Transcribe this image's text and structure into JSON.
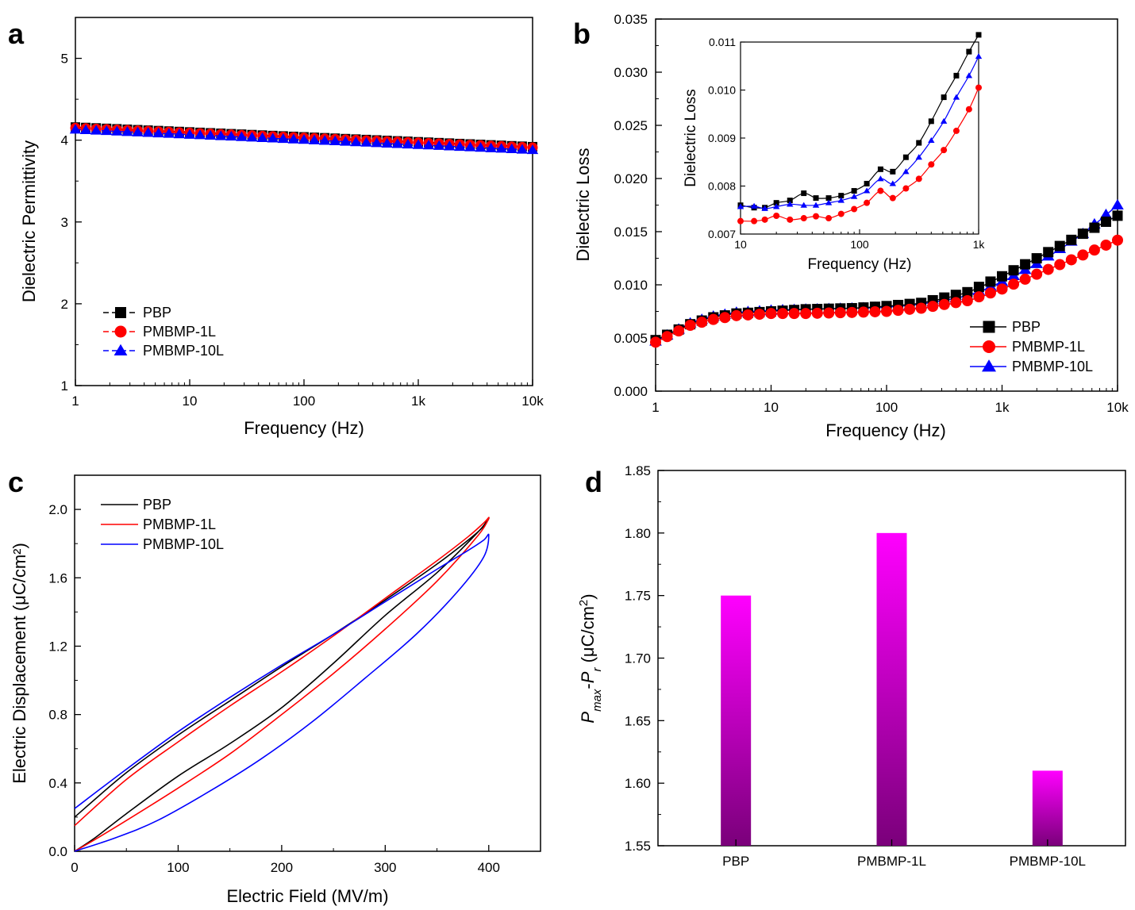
{
  "chart_data": [
    {
      "panel": "a",
      "type": "line",
      "xlabel": "Frequency (Hz)",
      "ylabel": "Dielectric Permittivity",
      "xscale": "log",
      "xlim": [
        1,
        10000
      ],
      "ylim": [
        1,
        5.5
      ],
      "x_ticks": [
        "1",
        "10",
        "100",
        "1k",
        "10k"
      ],
      "y_ticks": [
        "1",
        "2",
        "3",
        "4",
        "5"
      ],
      "legend_position": "bottom-left",
      "series": [
        {
          "name": "PBP",
          "marker": "square",
          "color": "#000000",
          "dash": "dashed",
          "x_range": [
            1,
            10000
          ],
          "y_start": 4.16,
          "y_end": 3.92
        },
        {
          "name": "PMBMP-1L",
          "marker": "circle",
          "color": "#ff0000",
          "dash": "dashed",
          "x_range": [
            1,
            10000
          ],
          "y_start": 4.15,
          "y_end": 3.91
        },
        {
          "name": "PMBMP-10L",
          "marker": "triangle",
          "color": "#0000ff",
          "dash": "dashed",
          "x_range": [
            1,
            10000
          ],
          "y_start": 4.13,
          "y_end": 3.88
        }
      ]
    },
    {
      "panel": "b",
      "type": "line",
      "xlabel": "Frequency (Hz)",
      "ylabel": "Dielectric Loss",
      "xscale": "log",
      "xlim": [
        1,
        10000
      ],
      "ylim": [
        0,
        0.035
      ],
      "x_ticks": [
        "1",
        "10",
        "100",
        "1k",
        "10k"
      ],
      "y_ticks": [
        "0.000",
        "0.005",
        "0.010",
        "0.015",
        "0.020",
        "0.025",
        "0.030",
        "0.035"
      ],
      "legend_position": "bottom-right",
      "series": [
        {
          "name": "PBP",
          "marker": "square",
          "color": "#000000",
          "x": [
            1,
            2,
            3,
            5,
            10,
            20,
            50,
            100,
            200,
            500,
            1000,
            2000,
            5000,
            10000
          ],
          "y": [
            0.0048,
            0.0063,
            0.0069,
            0.0073,
            0.0075,
            0.0077,
            0.0078,
            0.008,
            0.0083,
            0.0093,
            0.0108,
            0.0125,
            0.0148,
            0.0165
          ]
        },
        {
          "name": "PMBMP-1L",
          "marker": "circle",
          "color": "#ff0000",
          "x": [
            1,
            2,
            3,
            5,
            10,
            20,
            50,
            100,
            200,
            500,
            1000,
            2000,
            5000,
            10000
          ],
          "y": [
            0.0046,
            0.0062,
            0.0067,
            0.0071,
            0.0073,
            0.0073,
            0.0074,
            0.0075,
            0.0078,
            0.0085,
            0.0096,
            0.011,
            0.0128,
            0.0142
          ]
        },
        {
          "name": "PMBMP-10L",
          "marker": "triangle",
          "color": "#0000ff",
          "x": [
            1,
            2,
            3,
            5,
            10,
            20,
            50,
            100,
            200,
            500,
            1000,
            2000,
            5000,
            10000
          ],
          "y": [
            0.0047,
            0.0064,
            0.007,
            0.0074,
            0.0076,
            0.0077,
            0.0078,
            0.0079,
            0.0082,
            0.009,
            0.0103,
            0.012,
            0.0148,
            0.0175
          ]
        }
      ],
      "inset": {
        "xlabel": "Frequency (Hz)",
        "ylabel": "Dielectric Loss",
        "xscale": "log",
        "xlim": [
          10,
          1000
        ],
        "ylim": [
          0.007,
          0.011
        ],
        "x_ticks": [
          "10",
          "100",
          "1k"
        ],
        "y_ticks": [
          "0.007",
          "0.008",
          "0.009",
          "0.010",
          "0.011"
        ],
        "series": [
          {
            "name": "PBP",
            "marker": "square",
            "color": "#000000",
            "x": [
              10,
              13,
              16,
              20,
              26,
              34,
              43,
              55,
              70,
              90,
              115,
              150,
              190,
              245,
              315,
              400,
              510,
              650,
              830,
              1000
            ],
            "y": [
              0.0076,
              0.00755,
              0.00755,
              0.00765,
              0.0077,
              0.00785,
              0.00775,
              0.00775,
              0.0078,
              0.0079,
              0.00805,
              0.00835,
              0.0083,
              0.0086,
              0.0089,
              0.00935,
              0.00985,
              0.0103,
              0.0108,
              0.01115
            ]
          },
          {
            "name": "PMBMP-1L",
            "marker": "circle",
            "color": "#ff0000",
            "x": [
              10,
              13,
              16,
              20,
              26,
              34,
              43,
              55,
              70,
              90,
              115,
              150,
              190,
              245,
              315,
              400,
              510,
              650,
              830,
              1000
            ],
            "y": [
              0.00727,
              0.00727,
              0.0073,
              0.00738,
              0.0073,
              0.00733,
              0.00737,
              0.00733,
              0.00742,
              0.00752,
              0.00765,
              0.0079,
              0.00775,
              0.00795,
              0.00815,
              0.00845,
              0.00875,
              0.00915,
              0.0096,
              0.01005
            ]
          },
          {
            "name": "PMBMP-10L",
            "marker": "triangle",
            "color": "#0000ff",
            "x": [
              10,
              13,
              16,
              20,
              26,
              34,
              43,
              55,
              70,
              90,
              115,
              150,
              190,
              245,
              315,
              400,
              510,
              650,
              830,
              1000
            ],
            "y": [
              0.00757,
              0.00758,
              0.00753,
              0.00757,
              0.00762,
              0.0076,
              0.0076,
              0.00765,
              0.0077,
              0.00778,
              0.0079,
              0.00815,
              0.00805,
              0.0083,
              0.0086,
              0.00895,
              0.00935,
              0.00985,
              0.0103,
              0.0107
            ]
          }
        ]
      }
    },
    {
      "panel": "c",
      "type": "line",
      "xlabel": "Electric Field (MV/m)",
      "ylabel": "Electric Displacement (μC/cm²)",
      "xlim": [
        0,
        450
      ],
      "ylim": [
        0,
        2.2
      ],
      "x_ticks": [
        "0",
        "100",
        "200",
        "300",
        "400"
      ],
      "y_ticks": [
        "0.0",
        "0.4",
        "0.8",
        "1.2",
        "1.6",
        "2.0"
      ],
      "legend_position": "top-left",
      "series": [
        {
          "name": "PBP",
          "color": "#000000",
          "x": [
            0,
            50,
            100,
            150,
            200,
            250,
            300,
            350,
            380,
            395,
            400,
            390,
            350,
            300,
            250,
            200,
            150,
            100,
            50,
            20,
            0
          ],
          "y": [
            0.2,
            0.46,
            0.68,
            0.88,
            1.08,
            1.27,
            1.47,
            1.68,
            1.82,
            1.9,
            1.95,
            1.87,
            1.63,
            1.38,
            1.1,
            0.84,
            0.63,
            0.44,
            0.22,
            0.08,
            0.0
          ]
        },
        {
          "name": "PMBMP-1L",
          "color": "#ff0000",
          "x": [
            0,
            50,
            100,
            150,
            200,
            250,
            300,
            350,
            380,
            395,
            400,
            390,
            350,
            300,
            250,
            200,
            150,
            100,
            50,
            20,
            0
          ],
          "y": [
            0.15,
            0.42,
            0.64,
            0.85,
            1.05,
            1.26,
            1.48,
            1.7,
            1.84,
            1.92,
            1.95,
            1.85,
            1.58,
            1.3,
            1.04,
            0.8,
            0.57,
            0.37,
            0.18,
            0.07,
            0.0
          ]
        },
        {
          "name": "PMBMP-10L",
          "color": "#0000ff",
          "x": [
            0,
            50,
            100,
            150,
            200,
            250,
            300,
            350,
            380,
            395,
            400,
            395,
            370,
            330,
            280,
            230,
            180,
            130,
            80,
            40,
            0
          ],
          "y": [
            0.25,
            0.48,
            0.7,
            0.9,
            1.09,
            1.27,
            1.46,
            1.65,
            1.76,
            1.82,
            1.85,
            1.72,
            1.52,
            1.27,
            1.01,
            0.76,
            0.54,
            0.35,
            0.18,
            0.08,
            0.0
          ]
        }
      ]
    },
    {
      "panel": "d",
      "type": "bar",
      "ylabel": "Pmax-Pr (μC/cm²)",
      "ylim": [
        1.55,
        1.85
      ],
      "y_ticks": [
        "1.55",
        "1.60",
        "1.65",
        "1.70",
        "1.75",
        "1.80",
        "1.85"
      ],
      "categories": [
        "PBP",
        "PMBMP-1L",
        "PMBMP-10L"
      ],
      "values": [
        1.75,
        1.8,
        1.61
      ],
      "color_top": "#ff00ff",
      "color_bottom": "#7a007a"
    }
  ]
}
